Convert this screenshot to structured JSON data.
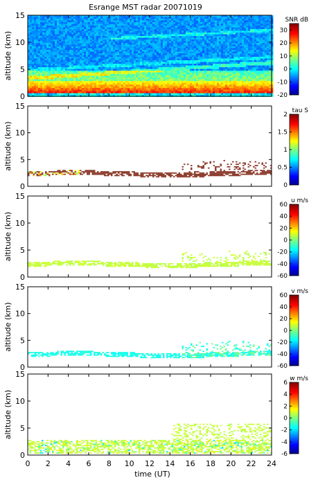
{
  "title": "Esrange MST radar 20071019",
  "xlabel": "time (UT)",
  "xticks": [
    "0",
    "2",
    "4",
    "6",
    "8",
    "10",
    "12",
    "14",
    "16",
    "18",
    "20",
    "22",
    "24"
  ],
  "chart_data": [
    {
      "type": "heatmap",
      "panel": "SNR",
      "ylabel": "altitude (km)",
      "yticks": [
        "0",
        "5",
        "10",
        "15"
      ],
      "xlim": [
        0,
        24
      ],
      "ylim": [
        0,
        15
      ],
      "colorbar": {
        "label": "SNR dB",
        "range": [
          -20,
          35
        ],
        "ticks": [
          "30",
          "20",
          "10",
          "0",
          "-10",
          "-20"
        ]
      },
      "field_description": "background noise ~ -5..0 dB; enhanced echo layers below ~5 km; strongest (~25 to 30 dB) at 1.5 to 2.5 km"
    },
    {
      "type": "heatmap",
      "panel": "tau",
      "ylabel": "altitude (km)",
      "yticks": [
        "0",
        "5",
        "10",
        "15"
      ],
      "xlim": [
        0,
        24
      ],
      "ylim": [
        0,
        15
      ],
      "colorbar": {
        "label": "tau S",
        "range": [
          0,
          2
        ],
        "ticks": [
          "2",
          "1.5",
          "1",
          "0.5",
          "0"
        ]
      },
      "field_description": "data at 1.5 to 5.5 km; mostly ~2 s (brown), some 1 to 1.5 s near 2.5 km before 5 UT"
    },
    {
      "type": "heatmap",
      "panel": "u",
      "ylabel": "altitude (km)",
      "yticks": [
        "0",
        "5",
        "10",
        "15"
      ],
      "xlim": [
        0,
        24
      ],
      "ylim": [
        0,
        15
      ],
      "colorbar": {
        "label": "u m/s",
        "range": [
          -60,
          60
        ],
        "ticks": [
          "60",
          "40",
          "20",
          "0",
          "-20",
          "-40",
          "-60"
        ]
      },
      "field_description": "data at 1.5 to 5.5 km; values near 0 to 10 m/s (light green)"
    },
    {
      "type": "heatmap",
      "panel": "v",
      "ylabel": "altitude (km)",
      "yticks": [
        "0",
        "5",
        "10",
        "15"
      ],
      "xlim": [
        0,
        24
      ],
      "ylim": [
        0,
        15
      ],
      "colorbar": {
        "label": "v m/s",
        "range": [
          -60,
          60
        ],
        "ticks": [
          "60",
          "40",
          "20",
          "0",
          "-20",
          "-40",
          "-60"
        ]
      },
      "field_description": "data at 1.5 to 5.5 km; values near -20 to -10 m/s (cyan), some near 0 after 15 UT"
    },
    {
      "type": "heatmap",
      "panel": "w",
      "ylabel": "altitude (km)",
      "yticks": [
        "0",
        "5",
        "10",
        "15"
      ],
      "xlim": [
        0,
        24
      ],
      "ylim": [
        0,
        15
      ],
      "colorbar": {
        "label": "w m/s",
        "range": [
          -6,
          6
        ],
        "ticks": [
          "6",
          "4",
          "2",
          "0",
          "-2",
          "-4",
          "-6"
        ]
      },
      "field_description": "data at 0.5 to 6 km; values near 0 to 1 m/s (green), scattered -2..+2 below 3 km"
    }
  ]
}
